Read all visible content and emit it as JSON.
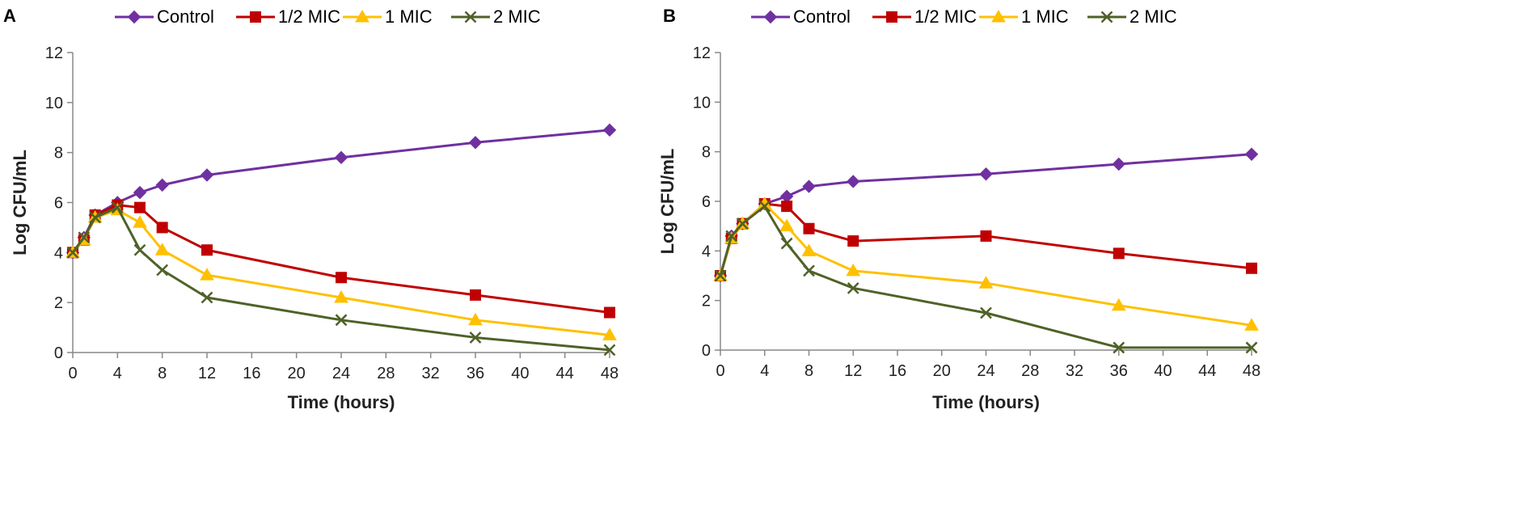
{
  "chart_data": [
    {
      "panel_label": "A",
      "type": "line",
      "xlabel": "Time (hours)",
      "ylabel": "Log CFU/mL",
      "xlim": [
        0,
        48
      ],
      "ylim": [
        0,
        12
      ],
      "x_ticks": [
        "0",
        "4",
        "8",
        "12",
        "16",
        "20",
        "24",
        "28",
        "32",
        "36",
        "40",
        "44",
        "48"
      ],
      "y_ticks": [
        "0",
        "2",
        "4",
        "6",
        "8",
        "10",
        "12"
      ],
      "legend_position": "top",
      "grid": false,
      "series": [
        {
          "name": "Control",
          "color": "#7030A0",
          "marker": "diamond",
          "points": [
            [
              0,
              4.0
            ],
            [
              1,
              4.6
            ],
            [
              2,
              5.5
            ],
            [
              4,
              6.0
            ],
            [
              6,
              6.4
            ],
            [
              8,
              6.7
            ],
            [
              12,
              7.1
            ],
            [
              24,
              7.8
            ],
            [
              36,
              8.4
            ],
            [
              48,
              8.9
            ]
          ]
        },
        {
          "name": "1/2 MIC",
          "color": "#C00000",
          "marker": "square",
          "points": [
            [
              0,
              4.0
            ],
            [
              1,
              4.5
            ],
            [
              2,
              5.5
            ],
            [
              4,
              5.9
            ],
            [
              6,
              5.8
            ],
            [
              8,
              5.0
            ],
            [
              12,
              4.1
            ],
            [
              24,
              3.0
            ],
            [
              36,
              2.3
            ],
            [
              48,
              1.6
            ]
          ]
        },
        {
          "name": "1 MIC",
          "color": "#FFC000",
          "marker": "triangle",
          "points": [
            [
              0,
              4.0
            ],
            [
              1,
              4.5
            ],
            [
              2,
              5.4
            ],
            [
              4,
              5.7
            ],
            [
              6,
              5.2
            ],
            [
              8,
              4.1
            ],
            [
              12,
              3.1
            ],
            [
              24,
              2.2
            ],
            [
              36,
              1.3
            ],
            [
              48,
              0.7
            ]
          ]
        },
        {
          "name": "2 MIC",
          "color": "#4F6228",
          "marker": "x",
          "points": [
            [
              0,
              4.0
            ],
            [
              1,
              4.6
            ],
            [
              2,
              5.4
            ],
            [
              4,
              5.8
            ],
            [
              6,
              4.1
            ],
            [
              8,
              3.3
            ],
            [
              12,
              2.2
            ],
            [
              24,
              1.3
            ],
            [
              36,
              0.6
            ],
            [
              48,
              0.1
            ]
          ]
        }
      ]
    },
    {
      "panel_label": "B",
      "type": "line",
      "xlabel": "Time (hours)",
      "ylabel": "Log CFU/mL",
      "xlim": [
        0,
        48
      ],
      "ylim": [
        0,
        12
      ],
      "x_ticks": [
        "0",
        "4",
        "8",
        "12",
        "16",
        "20",
        "24",
        "28",
        "32",
        "36",
        "40",
        "44",
        "48"
      ],
      "y_ticks": [
        "0",
        "2",
        "4",
        "6",
        "8",
        "10",
        "12"
      ],
      "legend_position": "top",
      "grid": false,
      "series": [
        {
          "name": "Control",
          "color": "#7030A0",
          "marker": "diamond",
          "points": [
            [
              0,
              3.0
            ],
            [
              1,
              4.6
            ],
            [
              2,
              5.1
            ],
            [
              4,
              5.9
            ],
            [
              6,
              6.2
            ],
            [
              8,
              6.6
            ],
            [
              12,
              6.8
            ],
            [
              24,
              7.1
            ],
            [
              36,
              7.5
            ],
            [
              48,
              7.9
            ]
          ]
        },
        {
          "name": "1/2 MIC",
          "color": "#C00000",
          "marker": "square",
          "points": [
            [
              0,
              3.0
            ],
            [
              1,
              4.5
            ],
            [
              2,
              5.1
            ],
            [
              4,
              5.9
            ],
            [
              6,
              5.8
            ],
            [
              8,
              4.9
            ],
            [
              12,
              4.4
            ],
            [
              24,
              4.6
            ],
            [
              36,
              3.9
            ],
            [
              48,
              3.3
            ]
          ]
        },
        {
          "name": "1 MIC",
          "color": "#FFC000",
          "marker": "triangle",
          "points": [
            [
              0,
              3.0
            ],
            [
              1,
              4.5
            ],
            [
              2,
              5.1
            ],
            [
              4,
              5.9
            ],
            [
              6,
              5.0
            ],
            [
              8,
              4.0
            ],
            [
              12,
              3.2
            ],
            [
              24,
              2.7
            ],
            [
              36,
              1.8
            ],
            [
              48,
              1.0
            ]
          ]
        },
        {
          "name": "2 MIC",
          "color": "#4F6228",
          "marker": "x",
          "points": [
            [
              0,
              3.0
            ],
            [
              1,
              4.6
            ],
            [
              2,
              5.1
            ],
            [
              4,
              5.8
            ],
            [
              6,
              4.3
            ],
            [
              8,
              3.2
            ],
            [
              12,
              2.5
            ],
            [
              24,
              1.5
            ],
            [
              36,
              0.1
            ],
            [
              48,
              0.1
            ]
          ]
        }
      ]
    }
  ]
}
